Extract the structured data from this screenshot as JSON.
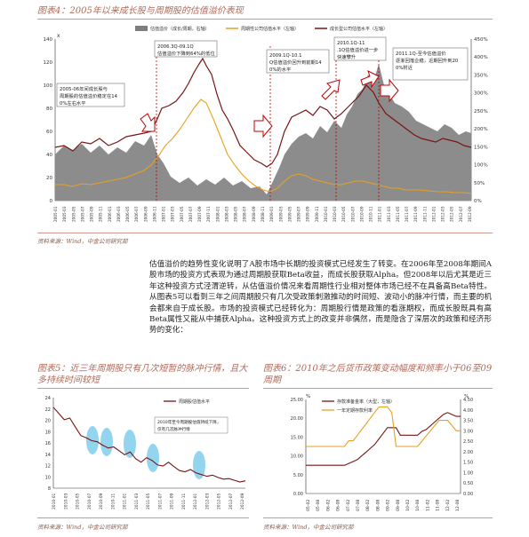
{
  "fig4": {
    "title": "图表4：2005年以来成长股与周期股的估值溢价表现",
    "source": "资料来源：Wind，中金公司研究部",
    "legend": [
      "估值溢价（成长/周期，右轴）",
      "周期性公司估值水平（左轴）",
      "成长型公司估值水平（左轴）"
    ],
    "left_axis_label": "x",
    "left_ticks": [
      "140",
      "120",
      "100",
      "80",
      "60",
      "40",
      "20",
      "0"
    ],
    "right_ticks": [
      "450%",
      "400%",
      "350%",
      "300%",
      "250%",
      "200%",
      "150%",
      "100%",
      "50%",
      "0%"
    ],
    "x_ticks": [
      "2005-01",
      "2005-03",
      "2005-05",
      "2005-07",
      "2005-09",
      "2005-11",
      "2006-01",
      "2006-03",
      "2006-05",
      "2006-07",
      "2006-09",
      "2006-11",
      "2007-01",
      "2007-03",
      "2007-05",
      "2007-07",
      "2007-09",
      "2007-11",
      "2008-01",
      "2008-03",
      "2008-05",
      "2008-07",
      "2008-09",
      "2008-11",
      "2009-01",
      "2009-03",
      "2009-05",
      "2009-07",
      "2009-09",
      "2009-11",
      "2010-01",
      "2010-03",
      "2010-05",
      "2010-07",
      "2010-09",
      "2010-11",
      "2011-01",
      "2011-03",
      "2011-05",
      "2011-07",
      "2011-09",
      "2011-11",
      "2012-01",
      "2012-03",
      "2012-05",
      "2012-07",
      "2012-09"
    ],
    "annotations": [
      "2005-06年间成长股与周期股的估值溢价稳定在140%左右水平",
      "2006.3Q-09.1Q估值溢价下降到64%的低位",
      "2009.1Q-10.1Q估值溢价回升到前期140%的水平",
      "2010.1Q-11.1Q估值溢价进一步快速攀升",
      "2011.1Q-至今估值溢价逐渐回落企稳，近期回升到200%附近"
    ]
  },
  "paragraph": "估值溢价的趋势性变化说明了A股市场中长期的投资模式已经发生了转变。在2006年至2008年期间A股市场的投资方式表现为通过周期股获取Beta收益，而成长股获取Alpha。但2008年以后尤其是近三年这种投资方式泾渭逆转，从估值溢价情况来看周期性行业相对整体市场已经不在具备高Beta特性。从图表5可以看到三年之间周期股只有几次受政策刺激推动的时间短、波动小的脉冲行情，而主要的机会都来自于成长股。市场的投资模式已经转化为：周期股行情是政策的看涨期权，而成长股既具有高Beta属性又能从中捕获Alpha。这种投资方式上的改变并非偶然，而是隐含了深层次的政策和经济形势的变化：",
  "fig5": {
    "title": "图表5：近三年周期股只有几次短暂的脉冲行情，且大多持续时间较短",
    "source": "资料来源：Wind，中金公司研究部",
    "legend": "周期股估值水平",
    "annotation": "2010年至今周期股估值持续下降，仅有几次脉冲行情",
    "y_ticks": [
      "24",
      "22",
      "20",
      "18",
      "16",
      "14",
      "12",
      "10",
      "8"
    ],
    "x_ticks": [
      "2010-01",
      "2010-03",
      "2010-05",
      "2010-07",
      "2010-09",
      "2010-11",
      "2011-01",
      "2011-03",
      "2011-05",
      "2011-07",
      "2011-09",
      "2011-11",
      "2012-01",
      "2012-03",
      "2012-05",
      "2012-07",
      "2012-09"
    ],
    "chart_data": {
      "type": "line",
      "series": [
        {
          "name": "周期股估值水平",
          "values": [
            22.3,
            21.2,
            20.1,
            20.4,
            18.8,
            17.3,
            16.9,
            16.4,
            16.2,
            15.6,
            15.1,
            15.3,
            14.6,
            13.9,
            14.4,
            13.2,
            12.6,
            13.4,
            12.9,
            12.1,
            11.9,
            12.6,
            11.8,
            11.1,
            10.9,
            11.3,
            10.7,
            10.4,
            10.1,
            10.3,
            9.9,
            9.6,
            9.7,
            9.4,
            9.1,
            9.3
          ]
        }
      ],
      "ylim": [
        8,
        24
      ]
    }
  },
  "fig6": {
    "title": "图表6：2010年之后货币政策变动幅度和频率小于06至09周期",
    "source": "资料来源：Wind，中金公司研究部",
    "unit_left": "%",
    "unit_right": "%",
    "legend": [
      "存款准备金率（大型，左轴）",
      "一年定期存款利率"
    ],
    "left_ticks": [
      "25.00",
      "20.00",
      "15.00",
      "10.00",
      "5.00",
      "0.00"
    ],
    "right_ticks": [
      "4.50",
      "4.00",
      "3.50",
      "3.00",
      "2.50",
      "2.00",
      "1.50",
      "1.00",
      "0.50",
      "0.00"
    ],
    "x_ticks": [
      "05-02",
      "05-08",
      "06-02",
      "06-08",
      "07-02",
      "07-08",
      "08-02",
      "08-08",
      "09-02",
      "09-08",
      "10-02",
      "10-08",
      "11-02",
      "11-08",
      "12-02",
      "12-08"
    ],
    "chart_data": {
      "type": "line",
      "series": [
        {
          "name": "存款准备金率（大型，左轴）",
          "values": [
            7.5,
            7.5,
            7.5,
            7.5,
            7.5,
            7.5,
            7.5,
            7.5,
            7.5,
            7.5,
            8.0,
            8.5,
            9.0,
            10.0,
            11.0,
            12.0,
            13.0,
            14.5,
            16.0,
            17.5,
            17.5,
            17.5,
            15.5,
            15.5,
            15.5,
            15.5,
            15.5,
            16.5,
            17.0,
            18.0,
            19.0,
            20.0,
            21.0,
            21.5,
            21.0,
            20.5,
            20.5
          ]
        },
        {
          "name": "一年定期存款利率",
          "values": [
            2.25,
            2.25,
            2.25,
            2.25,
            2.25,
            2.25,
            2.25,
            2.25,
            2.25,
            2.25,
            2.52,
            2.52,
            2.79,
            3.06,
            3.33,
            3.6,
            3.87,
            4.14,
            4.14,
            4.14,
            3.87,
            2.25,
            2.25,
            2.25,
            2.25,
            2.25,
            2.25,
            2.5,
            2.75,
            3.0,
            3.25,
            3.5,
            3.5,
            3.5,
            3.25,
            3.0,
            3.0
          ]
        }
      ]
    }
  }
}
